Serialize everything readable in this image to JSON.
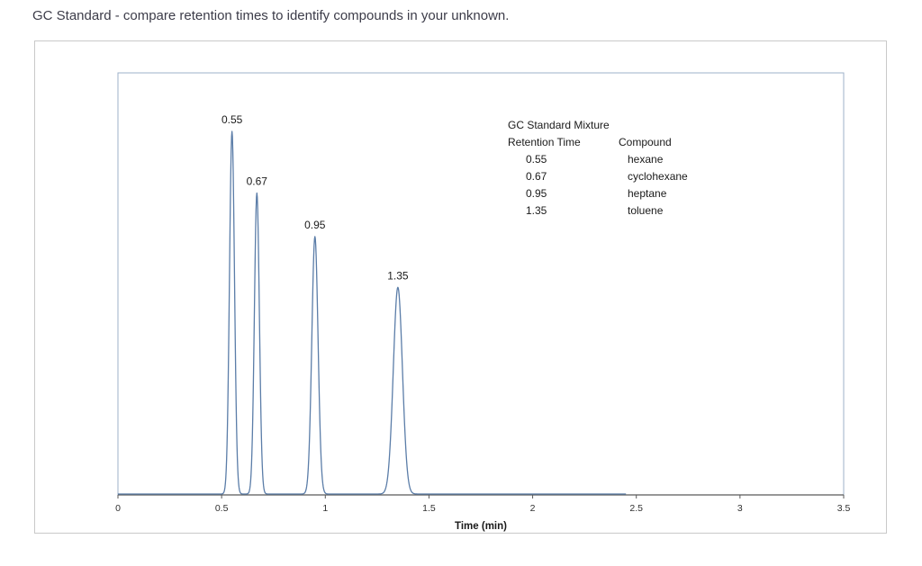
{
  "page": {
    "title": "GC Standard - compare retention times to identify compounds in your unknown."
  },
  "chart_data": {
    "type": "line",
    "title": "",
    "xlabel": "Time (min)",
    "ylabel": "",
    "xlim": [
      0,
      3.5
    ],
    "xticks": [
      0,
      0.5,
      1,
      1.5,
      2,
      2.5,
      3,
      3.5
    ],
    "trace_end_x": 2.45,
    "grid": false,
    "colors": {
      "line": "#5b7da8",
      "plot_border": "#9db1c8",
      "axis": "#595959",
      "frame_border": "#c9c9c9",
      "text": "#1a1a1a"
    },
    "peaks": [
      {
        "retention_time": 0.55,
        "relative_intensity": 100,
        "sigma": 0.012,
        "label": "0.55",
        "compound": "hexane"
      },
      {
        "retention_time": 0.67,
        "relative_intensity": 83,
        "sigma": 0.012,
        "label": "0.67",
        "compound": "cyclohexane"
      },
      {
        "retention_time": 0.95,
        "relative_intensity": 71,
        "sigma": 0.015,
        "label": "0.95",
        "compound": "heptane"
      },
      {
        "retention_time": 1.35,
        "relative_intensity": 57,
        "sigma": 0.022,
        "label": "1.35",
        "compound": "toluene"
      }
    ],
    "legend": {
      "title": "GC Standard Mixture",
      "col1_header": "Retention Time",
      "col2_header": "Compound",
      "rows": [
        {
          "retention_time": "0.55",
          "compound": "hexane"
        },
        {
          "retention_time": "0.67",
          "compound": "cyclohexane"
        },
        {
          "retention_time": "0.95",
          "compound": "heptane"
        },
        {
          "retention_time": "1.35",
          "compound": "toluene"
        }
      ]
    }
  }
}
